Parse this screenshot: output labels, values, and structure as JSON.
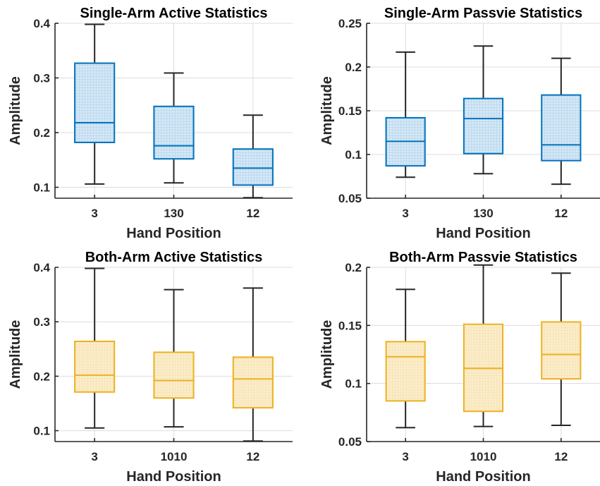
{
  "chart_data": [
    {
      "type": "box",
      "title": "Single-Arm Active Statistics",
      "xlabel": "Hand Position",
      "ylabel": "Amplitude",
      "categories": [
        "3",
        "130",
        "12"
      ],
      "ylim": [
        0.08,
        0.4
      ],
      "yticks": [
        0.1,
        0.2,
        0.3,
        0.4
      ],
      "ytick_labels": [
        "0.1",
        "0.2",
        "0.3",
        "0.4"
      ],
      "color": "#0072BD",
      "fill": "#d6e8f6",
      "grid": true,
      "boxes": [
        {
          "min": 0.106,
          "q1": 0.182,
          "median": 0.218,
          "q3": 0.327,
          "max": 0.398
        },
        {
          "min": 0.108,
          "q1": 0.152,
          "median": 0.176,
          "q3": 0.248,
          "max": 0.309
        },
        {
          "min": 0.081,
          "q1": 0.104,
          "median": 0.135,
          "q3": 0.17,
          "max": 0.232
        }
      ]
    },
    {
      "type": "box",
      "title": "Single-Arm Passvie Statistics",
      "xlabel": "Hand Position",
      "ylabel": "Amplitude",
      "categories": [
        "3",
        "130",
        "12"
      ],
      "ylim": [
        0.05,
        0.25
      ],
      "yticks": [
        0.05,
        0.1,
        0.15,
        0.2,
        0.25
      ],
      "ytick_labels": [
        "0.05",
        "0.1",
        "0.15",
        "0.2",
        "0.25"
      ],
      "color": "#0072BD",
      "fill": "#d6e8f6",
      "grid": true,
      "boxes": [
        {
          "min": 0.074,
          "q1": 0.087,
          "median": 0.115,
          "q3": 0.142,
          "max": 0.217
        },
        {
          "min": 0.078,
          "q1": 0.101,
          "median": 0.141,
          "q3": 0.164,
          "max": 0.224
        },
        {
          "min": 0.066,
          "q1": 0.093,
          "median": 0.111,
          "q3": 0.168,
          "max": 0.21
        }
      ]
    },
    {
      "type": "box",
      "title": "Both-Arm Active Statistics",
      "xlabel": "Hand Position",
      "ylabel": "Amplitude",
      "categories": [
        "3",
        "1010",
        "12"
      ],
      "ylim": [
        0.08,
        0.4
      ],
      "yticks": [
        0.1,
        0.2,
        0.3,
        0.4
      ],
      "ytick_labels": [
        "0.1",
        "0.2",
        "0.3",
        "0.4"
      ],
      "color": "#EDB120",
      "fill": "#fbedcc",
      "grid": true,
      "boxes": [
        {
          "min": 0.105,
          "q1": 0.171,
          "median": 0.202,
          "q3": 0.264,
          "max": 0.398
        },
        {
          "min": 0.107,
          "q1": 0.16,
          "median": 0.192,
          "q3": 0.244,
          "max": 0.359
        },
        {
          "min": 0.081,
          "q1": 0.142,
          "median": 0.195,
          "q3": 0.235,
          "max": 0.362
        }
      ]
    },
    {
      "type": "box",
      "title": "Both-Arm Passvie Statistics",
      "xlabel": "Hand Position",
      "ylabel": "Amplitude",
      "categories": [
        "3",
        "1010",
        "12"
      ],
      "ylim": [
        0.05,
        0.2
      ],
      "yticks": [
        0.05,
        0.1,
        0.15,
        0.2
      ],
      "ytick_labels": [
        "0.05",
        "0.1",
        "0.15",
        "0.2"
      ],
      "color": "#EDB120",
      "fill": "#fbedcc",
      "grid": true,
      "boxes": [
        {
          "min": 0.062,
          "q1": 0.085,
          "median": 0.123,
          "q3": 0.136,
          "max": 0.181
        },
        {
          "min": 0.063,
          "q1": 0.076,
          "median": 0.113,
          "q3": 0.151,
          "max": 0.202
        },
        {
          "min": 0.064,
          "q1": 0.104,
          "median": 0.125,
          "q3": 0.153,
          "max": 0.195
        }
      ]
    }
  ]
}
